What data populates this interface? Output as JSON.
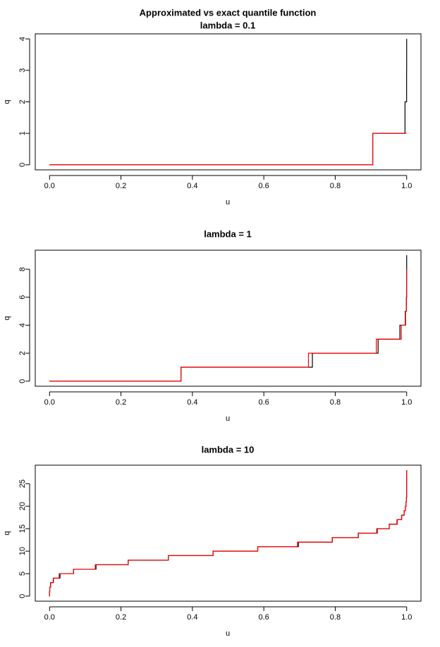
{
  "chart_data": [
    {
      "type": "step",
      "title": "Approximated vs exact quantile function",
      "subtitle": "lambda = 0.1",
      "x_label": "u",
      "y_label": "q",
      "xlim": [
        -0.04,
        1.04
      ],
      "xticks": [
        {
          "value": 0,
          "label": "0.0"
        },
        0.2,
        0.4,
        0.6,
        0.8,
        {
          "value": 1,
          "label": "1.0"
        }
      ],
      "ylim": [
        -0.16,
        4.16
      ],
      "yticks": [
        0,
        1,
        2,
        3,
        4
      ],
      "series": [
        {
          "color": "#000000",
          "x": [
            0,
            0.905,
            0.9953,
            0.9998,
            1.0
          ],
          "values": [
            0,
            1,
            2,
            3,
            4
          ]
        },
        {
          "color": "#ff0000",
          "x": [
            0,
            0.905,
            1.0
          ],
          "values": [
            0,
            1,
            1
          ]
        }
      ]
    },
    {
      "type": "step",
      "title": "lambda = 1",
      "x_label": "u",
      "y_label": "q",
      "xlim": [
        -0.04,
        1.04
      ],
      "xticks": [
        {
          "value": 0,
          "label": "0.0"
        },
        0.2,
        0.4,
        0.6,
        0.8,
        {
          "value": 1,
          "label": "1.0"
        }
      ],
      "ylim": [
        -0.36,
        9.36
      ],
      "yticks": [
        0,
        2,
        4,
        6,
        8
      ],
      "series": [
        {
          "color": "#000000",
          "x": [
            0,
            0.368,
            0.736,
            0.92,
            0.981,
            0.996,
            0.9994,
            0.9999,
            1.0
          ],
          "values": [
            0,
            1,
            2,
            3,
            4,
            5,
            6,
            7,
            9
          ]
        },
        {
          "color": "#ff0000",
          "x": [
            0,
            0.368,
            0.725,
            0.915,
            0.985,
            0.997,
            0.999,
            1.0
          ],
          "values": [
            0,
            1,
            2,
            3,
            4,
            5,
            6,
            8
          ]
        }
      ]
    },
    {
      "type": "step",
      "title": "lambda = 10",
      "x_label": "u",
      "y_label": "q",
      "xlim": [
        -0.04,
        1.04
      ],
      "xticks": [
        {
          "value": 0,
          "label": "0.0"
        },
        0.2,
        0.4,
        0.6,
        0.8,
        {
          "value": 1,
          "label": "1.0"
        }
      ],
      "ylim": [
        -1.12,
        29.12
      ],
      "yticks": [
        0,
        5,
        10,
        15,
        20,
        25
      ],
      "series": [
        {
          "color": "#000000",
          "x": [
            0,
            5e-05,
            0.0005,
            0.0028,
            0.0103,
            0.0293,
            0.0671,
            0.1301,
            0.2202,
            0.3328,
            0.4579,
            0.583,
            0.6968,
            0.7916,
            0.8645,
            0.9165,
            0.9513,
            0.973,
            0.9857,
            0.9928,
            0.9965,
            0.9984,
            0.9993,
            1.0
          ],
          "values": [
            0,
            1,
            2,
            3,
            4,
            5,
            6,
            7,
            8,
            9,
            10,
            11,
            12,
            13,
            14,
            15,
            16,
            17,
            18,
            19,
            20,
            21,
            22,
            28
          ]
        },
        {
          "color": "#ff0000",
          "x": [
            0,
            0.0001,
            0.0007,
            0.003,
            0.011,
            0.027,
            0.067,
            0.128,
            0.22,
            0.333,
            0.458,
            0.583,
            0.694,
            0.792,
            0.865,
            0.918,
            0.951,
            0.974,
            0.986,
            0.993,
            0.9965,
            0.9984,
            0.9993,
            1.0
          ],
          "values": [
            0,
            1,
            2,
            3,
            4,
            5,
            6,
            7,
            8,
            9,
            10,
            11,
            12,
            13,
            14,
            15,
            16,
            17,
            18,
            19,
            20,
            21,
            22,
            28
          ]
        }
      ]
    }
  ]
}
